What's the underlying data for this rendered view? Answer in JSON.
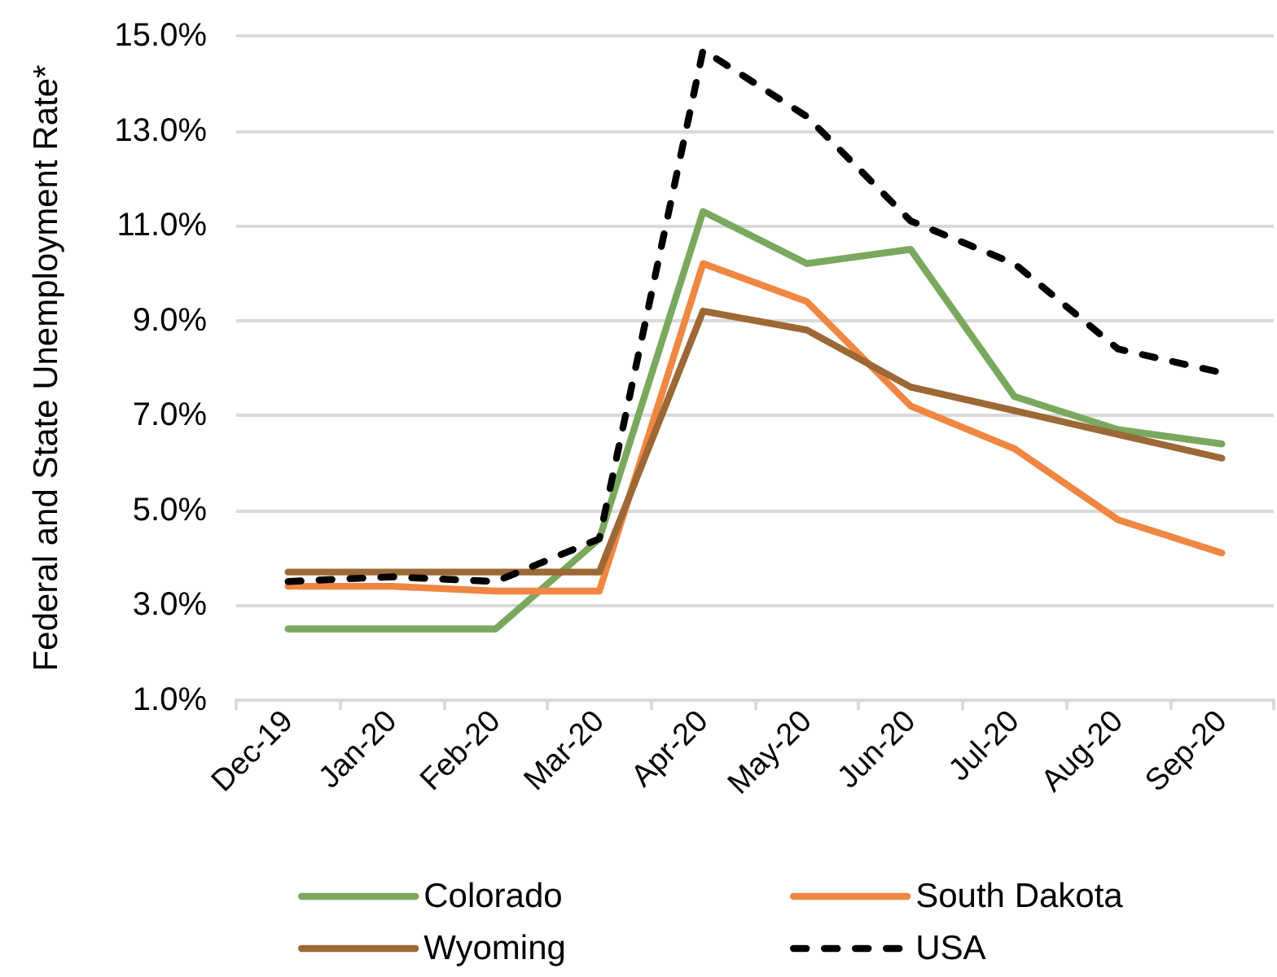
{
  "chart_data": {
    "type": "line",
    "ylabel": "Federal and State Unemployment Rate*",
    "categories": [
      "Dec-19",
      "Jan-20",
      "Feb-20",
      "Mar-20",
      "Apr-20",
      "May-20",
      "Jun-20",
      "Jul-20",
      "Aug-20",
      "Sep-20"
    ],
    "series": [
      {
        "name": "Colorado",
        "color": "#7aa85e",
        "values": [
          2.5,
          2.5,
          2.5,
          4.4,
          11.3,
          10.2,
          10.5,
          7.4,
          6.7,
          6.4
        ]
      },
      {
        "name": "South Dakota",
        "color": "#ef8743",
        "values": [
          3.4,
          3.4,
          3.3,
          3.3,
          10.2,
          9.4,
          7.2,
          6.3,
          4.8,
          4.1
        ]
      },
      {
        "name": "Wyoming",
        "color": "#9c6835",
        "values": [
          3.7,
          3.7,
          3.7,
          3.7,
          9.2,
          8.8,
          7.6,
          7.1,
          6.6,
          6.1
        ]
      },
      {
        "name": "USA",
        "color": "#000000",
        "line_style": "dashed",
        "values": [
          3.5,
          3.6,
          3.5,
          4.4,
          14.7,
          13.3,
          11.1,
          10.2,
          8.4,
          7.9
        ]
      }
    ],
    "ylim": [
      1,
      15
    ],
    "yticks": [
      {
        "value": 1,
        "label": "1.0%"
      },
      {
        "value": 3,
        "label": "3.0%"
      },
      {
        "value": 5,
        "label": "5.0%"
      },
      {
        "value": 7,
        "label": "7.0%"
      },
      {
        "value": 9,
        "label": "9.0%"
      },
      {
        "value": 11,
        "label": "11.0%"
      },
      {
        "value": 13,
        "label": "13.0%"
      },
      {
        "value": 15,
        "label": "15.0%"
      }
    ],
    "grid": "y",
    "legend": "bottom",
    "marker": "none"
  }
}
